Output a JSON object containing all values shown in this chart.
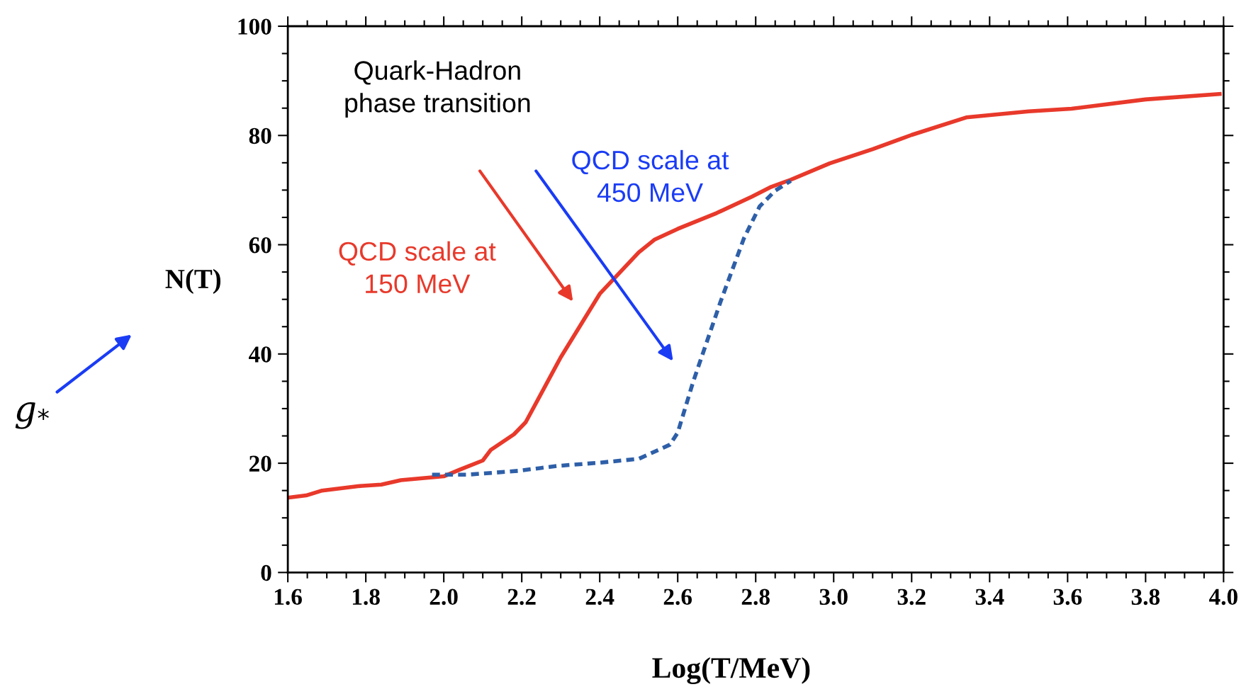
{
  "chart_data": {
    "type": "line",
    "xlabel": "Log(T/MeV)",
    "ylabel": "N(T)",
    "xlim": [
      1.6,
      4.0
    ],
    "ylim": [
      0,
      100
    ],
    "xticks": [
      {
        "value": 1.6,
        "label": "1.6"
      },
      {
        "value": 1.65,
        "label": null
      },
      {
        "value": 1.7,
        "label": null
      },
      {
        "value": 1.75,
        "label": null
      },
      {
        "value": 1.8,
        "label": "1.8"
      },
      {
        "value": 1.85,
        "label": null
      },
      {
        "value": 1.9,
        "label": null
      },
      {
        "value": 1.95,
        "label": null
      },
      {
        "value": 2.0,
        "label": "2.0"
      },
      {
        "value": 2.05,
        "label": null
      },
      {
        "value": 2.1,
        "label": null
      },
      {
        "value": 2.15,
        "label": null
      },
      {
        "value": 2.2,
        "label": "2.2"
      },
      {
        "value": 2.25,
        "label": null
      },
      {
        "value": 2.3,
        "label": null
      },
      {
        "value": 2.35,
        "label": null
      },
      {
        "value": 2.4,
        "label": "2.4"
      },
      {
        "value": 2.45,
        "label": null
      },
      {
        "value": 2.5,
        "label": null
      },
      {
        "value": 2.55,
        "label": null
      },
      {
        "value": 2.6,
        "label": "2.6"
      },
      {
        "value": 2.65,
        "label": null
      },
      {
        "value": 2.7,
        "label": null
      },
      {
        "value": 2.75,
        "label": null
      },
      {
        "value": 2.8,
        "label": "2.8"
      },
      {
        "value": 2.85,
        "label": null
      },
      {
        "value": 2.9,
        "label": null
      },
      {
        "value": 2.95,
        "label": null
      },
      {
        "value": 3.0,
        "label": "3.0"
      },
      {
        "value": 3.05,
        "label": null
      },
      {
        "value": 3.1,
        "label": null
      },
      {
        "value": 3.15,
        "label": null
      },
      {
        "value": 3.2,
        "label": "3.2"
      },
      {
        "value": 3.25,
        "label": null
      },
      {
        "value": 3.3,
        "label": null
      },
      {
        "value": 3.35,
        "label": null
      },
      {
        "value": 3.4,
        "label": "3.4"
      },
      {
        "value": 3.45,
        "label": null
      },
      {
        "value": 3.5,
        "label": null
      },
      {
        "value": 3.55,
        "label": null
      },
      {
        "value": 3.6,
        "label": "3.6"
      },
      {
        "value": 3.65,
        "label": null
      },
      {
        "value": 3.7,
        "label": null
      },
      {
        "value": 3.75,
        "label": null
      },
      {
        "value": 3.8,
        "label": "3.8"
      },
      {
        "value": 3.85,
        "label": null
      },
      {
        "value": 3.9,
        "label": null
      },
      {
        "value": 3.95,
        "label": null
      },
      {
        "value": 4.0,
        "label": "4.0"
      }
    ],
    "yticks": [
      0,
      {
        "value": 5,
        "label": null
      },
      {
        "value": 10,
        "label": null
      },
      {
        "value": 15,
        "label": null
      },
      20,
      {
        "value": 25,
        "label": null
      },
      {
        "value": 30,
        "label": null
      },
      {
        "value": 35,
        "label": null
      },
      40,
      {
        "value": 45,
        "label": null
      },
      {
        "value": 50,
        "label": null
      },
      {
        "value": 55,
        "label": null
      },
      60,
      {
        "value": 65,
        "label": null
      },
      {
        "value": 70,
        "label": null
      },
      {
        "value": 75,
        "label": null
      },
      80,
      {
        "value": 85,
        "label": null
      },
      {
        "value": 90,
        "label": null
      },
      {
        "value": 95,
        "label": null
      },
      100
    ],
    "grid": false,
    "legend": false,
    "marker": "none",
    "series": [
      {
        "color": "#e8392b",
        "line_style": "solid",
        "x": [
          1.6,
          1.647,
          1.688,
          1.78,
          1.84,
          1.89,
          2.0,
          2.04,
          2.1,
          2.12,
          2.18,
          2.21,
          2.3,
          2.35,
          2.4,
          2.5,
          2.54,
          2.6,
          2.7,
          2.79,
          2.84,
          2.89,
          2.99,
          3.1,
          3.2,
          3.34,
          3.5,
          3.61,
          3.8,
          3.99
        ],
        "values": [
          13.7,
          14.1,
          15.0,
          15.8,
          16.1,
          16.9,
          17.6,
          18.8,
          20.5,
          22.4,
          25.3,
          27.5,
          39.4,
          45.2,
          51.0,
          58.6,
          60.9,
          62.9,
          65.8,
          68.8,
          70.6,
          71.9,
          74.9,
          77.5,
          80.1,
          83.3,
          84.4,
          84.9,
          86.6,
          87.6
        ]
      },
      {
        "color": "#2e5fa8",
        "line_style": "dashed",
        "x": [
          1.97,
          2.06,
          2.19,
          2.29,
          2.4,
          2.5,
          2.58,
          2.6,
          2.64,
          2.71,
          2.77,
          2.81,
          2.85,
          2.89
        ],
        "values": [
          17.9,
          17.9,
          18.6,
          19.5,
          20.1,
          20.8,
          23.4,
          25.6,
          35.0,
          49.6,
          61.2,
          67.0,
          69.9,
          71.7
        ]
      }
    ],
    "annotations": [
      "Quark-Hadron\nphase transition",
      "QCD scale at\n150 MeV",
      "QCD scale at\n450 MeV",
      "g$_{*}$"
    ]
  }
}
